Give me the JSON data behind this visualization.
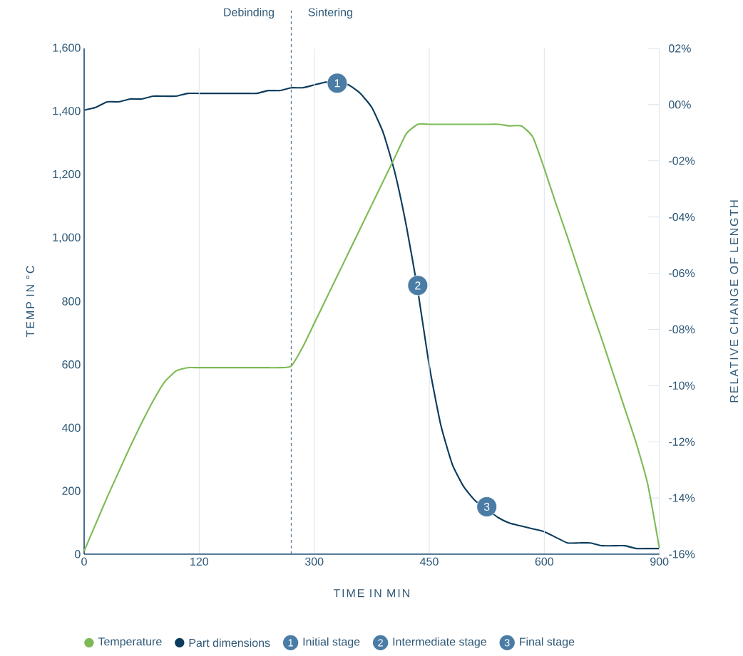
{
  "chart_data": {
    "type": "line",
    "xlabel": "TIME IN MIN",
    "ylabel": "TEMP IN °C",
    "y2label": "RELATIVE CHANGE OF LENGTH",
    "annotations": [
      "Debinding",
      "Sintering",
      "1",
      "2",
      "3"
    ],
    "categories": [
      "0",
      null,
      null,
      null,
      null,
      null,
      null,
      null,
      null,
      null,
      "120",
      null,
      null,
      null,
      null,
      null,
      null,
      null,
      null,
      null,
      "300",
      null,
      null,
      null,
      null,
      null,
      null,
      null,
      null,
      null,
      "450",
      null,
      null,
      null,
      null,
      null,
      null,
      null,
      null,
      null,
      "600",
      null,
      null,
      null,
      null,
      null,
      null,
      null,
      null,
      null,
      "900"
    ],
    "ylim": [
      0,
      1600
    ],
    "yticks": [
      0,
      200,
      400,
      600,
      800,
      {
        "value": 1000,
        "label": "1,000"
      },
      {
        "value": 1200,
        "label": "1,200"
      },
      {
        "value": 1400,
        "label": "1,400"
      },
      {
        "value": 1600,
        "label": "1,600"
      }
    ],
    "y2lim": [
      -16,
      2
    ],
    "y2ticks": [
      {
        "value": 2,
        "label": "02%"
      },
      {
        "value": 0,
        "label": "00%"
      },
      {
        "value": -2,
        "label": "-02%"
      },
      {
        "value": -4,
        "label": "-04%"
      },
      {
        "value": -6,
        "label": "-06%"
      },
      {
        "value": -8,
        "label": "-08%"
      },
      {
        "value": -10,
        "label": "-10%"
      },
      {
        "value": -12,
        "label": "-12%"
      },
      {
        "value": -14,
        "label": "-14%"
      },
      {
        "value": -16,
        "label": "-16%"
      }
    ],
    "grid": "x",
    "legend": "bottom",
    "series": [
      {
        "name": "Temperature",
        "color": "#7dba55",
        "values": [
          10,
          95,
          180,
          260,
          340,
          415,
          485,
          545,
          580,
          590,
          590,
          590,
          590,
          590,
          590,
          590,
          590,
          590,
          595,
          655,
          730,
          805,
          880,
          955,
          1030,
          1105,
          1180,
          1255,
          1330,
          1360,
          1360,
          1360,
          1360,
          1360,
          1360,
          1360,
          1360,
          1355,
          1355,
          1320,
          1220,
          1110,
          1005,
          895,
          785,
          680,
          570,
          460,
          350,
          220,
          20
        ]
      },
      {
        "name": "Part dimensions",
        "axis": "y2",
        "color": "#0b3c5d",
        "values": [
          -0.2,
          -0.1,
          0.1,
          0.1,
          0.2,
          0.2,
          0.3,
          0.3,
          0.3,
          0.4,
          0.4,
          0.4,
          0.4,
          0.4,
          0.4,
          0.4,
          0.5,
          0.5,
          0.6,
          0.6,
          0.7,
          0.8,
          0.8,
          0.7,
          0.4,
          -0.1,
          -1.0,
          -2.4,
          -4.3,
          -6.6,
          -9.3,
          -11.4,
          -12.8,
          -13.6,
          -14.1,
          -14.4,
          -14.7,
          -14.9,
          -15.0,
          -15.1,
          -15.2,
          -15.4,
          -15.6,
          -15.6,
          -15.6,
          -15.7,
          -15.7,
          -15.7,
          -15.8,
          -15.8,
          -15.8
        ]
      },
      {
        "name": "Initial stage",
        "type": "scatter",
        "color": "#4a7ca6",
        "marker": "circle",
        "values": [
          null,
          null,
          null,
          null,
          null,
          null,
          null,
          null,
          null,
          null,
          null,
          null,
          null,
          null,
          null,
          null,
          null,
          null,
          null,
          null,
          null,
          null,
          1490,
          null,
          null,
          null,
          null,
          null,
          null,
          null,
          null,
          null,
          null,
          null,
          null,
          null,
          null,
          null,
          null,
          null,
          null,
          null,
          null,
          null,
          null,
          null,
          null,
          null,
          null,
          null,
          null
        ]
      },
      {
        "name": "Intermediate stage",
        "type": "scatter",
        "color": "#4a7ca6",
        "marker": "circle",
        "values": [
          null,
          null,
          null,
          null,
          null,
          null,
          null,
          null,
          null,
          null,
          null,
          null,
          null,
          null,
          null,
          null,
          null,
          null,
          null,
          null,
          null,
          null,
          null,
          null,
          null,
          null,
          null,
          null,
          null,
          850,
          null,
          null,
          null,
          null,
          null,
          null,
          null,
          null,
          null,
          null,
          null,
          null,
          null,
          null,
          null,
          null,
          null,
          null,
          null,
          null,
          null
        ]
      },
      {
        "name": "Final stage",
        "type": "scatter",
        "color": "#4a7ca6",
        "marker": "circle",
        "values": [
          null,
          null,
          null,
          null,
          null,
          null,
          null,
          null,
          null,
          null,
          null,
          null,
          null,
          null,
          null,
          null,
          null,
          null,
          null,
          null,
          null,
          null,
          null,
          null,
          null,
          null,
          null,
          null,
          null,
          null,
          null,
          null,
          null,
          null,
          null,
          150,
          null,
          null,
          null,
          null,
          null,
          null,
          null,
          null,
          null,
          null,
          null,
          null,
          null,
          null,
          null
        ]
      }
    ]
  }
}
